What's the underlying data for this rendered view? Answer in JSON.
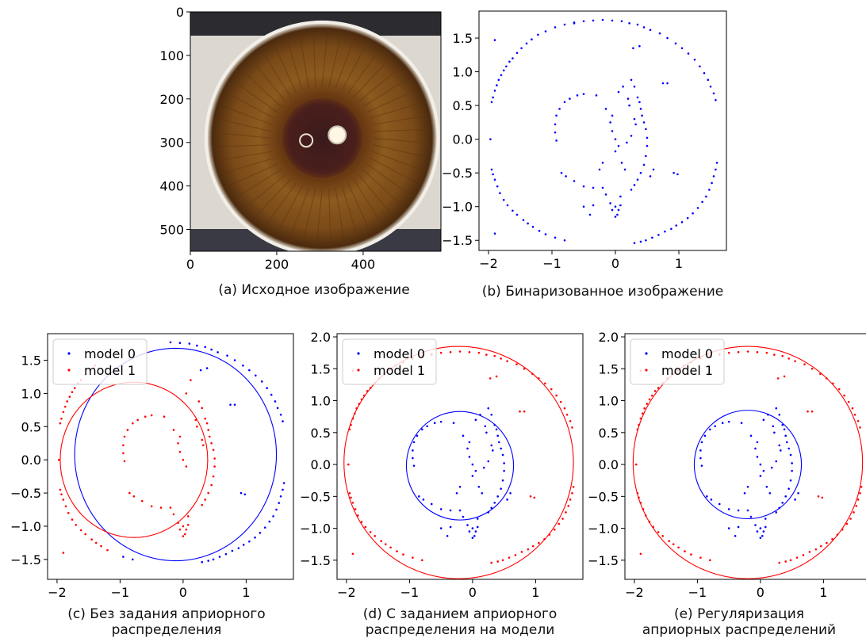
{
  "chart_data": [
    {
      "id": "a",
      "type": "image",
      "caption": "(a) Исходное изображение",
      "xticks": [
        "0",
        "200",
        "400"
      ],
      "yticks": [
        "0",
        "100",
        "200",
        "300",
        "400",
        "500"
      ],
      "xlim": [
        0,
        580
      ],
      "ylim": [
        550,
        0
      ],
      "image": {
        "width": 580,
        "height": 550,
        "iris_center": [
          305,
          290
        ],
        "iris_radius": 265,
        "pupil_radius": 92
      }
    },
    {
      "id": "b",
      "type": "scatter",
      "caption": "(b) Бинаризованное изображение",
      "xticks": [
        "−2",
        "−1",
        "0",
        "1"
      ],
      "yticks": [
        "−1.5",
        "−1.0",
        "−0.5",
        "0.0",
        "0.5",
        "1.0",
        "1.5"
      ],
      "xlim": [
        -2.15,
        1.75
      ],
      "ylim": [
        -1.65,
        1.9
      ],
      "series": [
        {
          "color": "#0000ff",
          "group": "all"
        }
      ]
    },
    {
      "id": "c",
      "type": "scatter",
      "caption": [
        "(c) Без задания априорного",
        "распределения"
      ],
      "legend": [
        "model 0",
        "model 1"
      ],
      "legend_position": "top-left",
      "xticks": [
        "−2",
        "−1",
        "0",
        "1"
      ],
      "yticks": [
        "−1.5",
        "−1.0",
        "−0.5",
        "0.0",
        "0.5",
        "1.0",
        "1.5"
      ],
      "xlim": [
        -2.15,
        1.75
      ],
      "ylim": [
        -1.8,
        1.9
      ],
      "series": [
        {
          "color": "#0000ff",
          "group": "c0"
        },
        {
          "color": "#ff0000",
          "group": "c1"
        }
      ],
      "circles": [
        {
          "cx": -0.12,
          "cy": 0.08,
          "r": 1.6,
          "color": "#0000ff"
        },
        {
          "cx": -0.78,
          "cy": 0.0,
          "r": 1.17,
          "color": "#ff0000"
        }
      ]
    },
    {
      "id": "d",
      "type": "scatter",
      "caption": [
        "(d) С заданием априорного",
        "распределения на модели"
      ],
      "legend": [
        "model 0",
        "model 1"
      ],
      "legend_position": "top-left",
      "xticks": [
        "−2",
        "−1",
        "0",
        "1"
      ],
      "yticks": [
        "−1.5",
        "−1.0",
        "−0.5",
        "0.0",
        "0.5",
        "1.0",
        "1.5",
        "2.0"
      ],
      "xlim": [
        -2.15,
        1.75
      ],
      "ylim": [
        -1.8,
        2.05
      ],
      "series": [
        {
          "color": "#0000ff",
          "group": "inner"
        },
        {
          "color": "#ff0000",
          "group": "outer"
        }
      ],
      "circles": [
        {
          "cx": -0.2,
          "cy": -0.02,
          "r": 0.85,
          "color": "#0000ff"
        },
        {
          "cx": -0.22,
          "cy": 0.03,
          "r": 1.82,
          "color": "#ff0000"
        }
      ]
    },
    {
      "id": "e",
      "type": "scatter",
      "caption": [
        "(e) Регуляризация",
        "априорных распределений"
      ],
      "legend": [
        "model 0",
        "model 1"
      ],
      "legend_position": "top-left",
      "xticks": [
        "−2",
        "−1",
        "0",
        "1"
      ],
      "yticks": [
        "−1.5",
        "−1.0",
        "−0.5",
        "0.0",
        "0.5",
        "1.0",
        "1.5",
        "2.0"
      ],
      "xlim": [
        -2.15,
        1.75
      ],
      "ylim": [
        -1.8,
        2.05
      ],
      "series": [
        {
          "color": "#0000ff",
          "group": "inner"
        },
        {
          "color": "#ff0000",
          "group": "outer"
        }
      ],
      "circles": [
        {
          "cx": -0.2,
          "cy": 0.0,
          "r": 0.85,
          "color": "#0000ff"
        },
        {
          "cx": -0.2,
          "cy": 0.03,
          "r": 1.82,
          "color": "#ff0000"
        }
      ]
    }
  ],
  "points": {
    "outer": [
      [
        -1.95,
        0.55
      ],
      [
        -1.93,
        0.62
      ],
      [
        -1.9,
        0.72
      ],
      [
        -1.87,
        0.8
      ],
      [
        -1.84,
        0.88
      ],
      [
        -1.8,
        0.95
      ],
      [
        -1.76,
        1.02
      ],
      [
        -1.72,
        1.08
      ],
      [
        -1.67,
        1.15
      ],
      [
        -1.62,
        1.2
      ],
      [
        -1.55,
        1.28
      ],
      [
        -1.48,
        1.35
      ],
      [
        -1.4,
        1.42
      ],
      [
        -1.32,
        1.48
      ],
      [
        -1.22,
        1.55
      ],
      [
        -1.1,
        1.6
      ],
      [
        -0.95,
        1.66
      ],
      [
        -0.8,
        1.7
      ],
      [
        -0.65,
        1.73
      ],
      [
        -0.5,
        1.75
      ],
      [
        -0.35,
        1.76
      ],
      [
        -0.2,
        1.77
      ],
      [
        -0.05,
        1.76
      ],
      [
        0.1,
        1.75
      ],
      [
        0.22,
        1.72
      ],
      [
        0.35,
        1.7
      ],
      [
        0.45,
        1.66
      ],
      [
        0.55,
        1.62
      ],
      [
        0.7,
        1.57
      ],
      [
        0.82,
        1.5
      ],
      [
        0.95,
        1.42
      ],
      [
        1.05,
        1.35
      ],
      [
        1.15,
        1.27
      ],
      [
        1.25,
        1.18
      ],
      [
        1.33,
        1.08
      ],
      [
        1.4,
        0.98
      ],
      [
        1.46,
        0.88
      ],
      [
        1.5,
        0.78
      ],
      [
        1.55,
        0.68
      ],
      [
        1.58,
        0.58
      ],
      [
        1.6,
        -0.35
      ],
      [
        1.58,
        -0.45
      ],
      [
        1.55,
        -0.55
      ],
      [
        1.52,
        -0.65
      ],
      [
        1.48,
        -0.75
      ],
      [
        1.43,
        -0.85
      ],
      [
        1.37,
        -0.93
      ],
      [
        1.3,
        -1.02
      ],
      [
        1.22,
        -1.1
      ],
      [
        1.14,
        -1.17
      ],
      [
        1.05,
        -1.23
      ],
      [
        0.96,
        -1.28
      ],
      [
        0.88,
        -1.33
      ],
      [
        0.78,
        -1.37
      ],
      [
        0.68,
        -1.42
      ],
      [
        0.58,
        -1.46
      ],
      [
        0.48,
        -1.5
      ],
      [
        0.4,
        -1.52
      ],
      [
        0.3,
        -1.54
      ],
      [
        -1.95,
        -0.45
      ],
      [
        -1.93,
        -0.52
      ],
      [
        -1.9,
        -0.6
      ],
      [
        -1.86,
        -0.7
      ],
      [
        -1.82,
        -0.8
      ],
      [
        -1.76,
        -0.9
      ],
      [
        -1.7,
        -0.98
      ],
      [
        -1.62,
        -1.06
      ],
      [
        -1.55,
        -1.12
      ],
      [
        -1.45,
        -1.2
      ],
      [
        -1.38,
        -1.25
      ],
      [
        -1.3,
        -1.3
      ],
      [
        -1.2,
        -1.36
      ],
      [
        -1.1,
        -1.41
      ],
      [
        -0.95,
        -1.46
      ],
      [
        -0.8,
        -1.5
      ],
      [
        -1.9,
        1.47
      ],
      [
        -1.9,
        -1.4
      ],
      [
        -0.65,
        1.72
      ],
      [
        0.28,
        1.35
      ],
      [
        0.38,
        1.38
      ],
      [
        0.75,
        0.83
      ],
      [
        0.82,
        0.83
      ],
      [
        0.92,
        -0.5
      ],
      [
        0.98,
        -0.52
      ],
      [
        -1.97,
        0.0
      ]
    ],
    "inner": [
      [
        -0.5,
        0.67
      ],
      [
        -0.6,
        0.65
      ],
      [
        -0.72,
        0.6
      ],
      [
        -0.8,
        0.55
      ],
      [
        -0.88,
        0.45
      ],
      [
        -0.93,
        0.35
      ],
      [
        -0.95,
        0.22
      ],
      [
        -0.95,
        0.1
      ],
      [
        -0.93,
        -0.02
      ],
      [
        -0.85,
        -0.5
      ],
      [
        -0.78,
        -0.55
      ],
      [
        -0.65,
        -0.62
      ],
      [
        -0.5,
        -0.7
      ],
      [
        -0.35,
        -0.72
      ],
      [
        -0.2,
        -0.72
      ],
      [
        -0.08,
        -0.95
      ],
      [
        0.0,
        -1.0
      ],
      [
        0.05,
        -1.05
      ],
      [
        0.08,
        -0.98
      ],
      [
        0.03,
        -1.12
      ],
      [
        -0.05,
        -1.05
      ],
      [
        0.0,
        -1.15
      ],
      [
        -0.15,
        -0.82
      ],
      [
        0.08,
        -0.85
      ],
      [
        -0.35,
        -0.98
      ],
      [
        -0.5,
        -1.0
      ],
      [
        -0.4,
        -1.12
      ],
      [
        0.25,
        0.88
      ],
      [
        0.3,
        0.78
      ],
      [
        0.35,
        0.62
      ],
      [
        0.38,
        0.55
      ],
      [
        0.4,
        0.45
      ],
      [
        0.42,
        0.35
      ],
      [
        0.45,
        0.25
      ],
      [
        0.48,
        0.15
      ],
      [
        0.5,
        0.02
      ],
      [
        0.5,
        -0.1
      ],
      [
        0.48,
        -0.25
      ],
      [
        0.45,
        -0.38
      ],
      [
        0.4,
        -0.5
      ],
      [
        0.35,
        -0.6
      ],
      [
        0.3,
        -0.68
      ],
      [
        0.25,
        -0.75
      ],
      [
        -0.05,
        0.35
      ],
      [
        -0.08,
        0.25
      ],
      [
        -0.05,
        0.12
      ],
      [
        0.0,
        0.0
      ],
      [
        0.05,
        -0.1
      ],
      [
        0.0,
        -0.18
      ],
      [
        0.2,
        0.6
      ],
      [
        0.22,
        0.5
      ],
      [
        0.3,
        0.3
      ],
      [
        0.32,
        0.22
      ],
      [
        0.25,
        0.05
      ],
      [
        0.18,
        -0.05
      ],
      [
        0.1,
        -0.35
      ],
      [
        0.15,
        -0.45
      ],
      [
        -0.2,
        -0.35
      ],
      [
        -0.25,
        -0.45
      ],
      [
        0.6,
        -0.45
      ],
      [
        0.55,
        -0.55
      ],
      [
        -0.15,
        0.45
      ],
      [
        -0.3,
        0.65
      ],
      [
        0.05,
        0.7
      ],
      [
        0.12,
        0.78
      ]
    ],
    "c0": [
      [
        -0.2,
        1.77
      ],
      [
        -0.05,
        1.76
      ],
      [
        0.1,
        1.75
      ],
      [
        0.22,
        1.72
      ],
      [
        0.35,
        1.7
      ],
      [
        0.45,
        1.66
      ],
      [
        0.55,
        1.62
      ],
      [
        0.7,
        1.57
      ],
      [
        0.82,
        1.5
      ],
      [
        0.95,
        1.42
      ],
      [
        1.05,
        1.35
      ],
      [
        1.15,
        1.27
      ],
      [
        1.25,
        1.18
      ],
      [
        1.33,
        1.08
      ],
      [
        1.4,
        0.98
      ],
      [
        1.46,
        0.88
      ],
      [
        1.5,
        0.78
      ],
      [
        1.55,
        0.68
      ],
      [
        1.58,
        0.58
      ],
      [
        1.6,
        -0.35
      ],
      [
        1.58,
        -0.45
      ],
      [
        1.55,
        -0.55
      ],
      [
        1.52,
        -0.65
      ],
      [
        1.48,
        -0.75
      ],
      [
        1.43,
        -0.85
      ],
      [
        1.37,
        -0.93
      ],
      [
        1.3,
        -1.02
      ],
      [
        1.22,
        -1.1
      ],
      [
        1.14,
        -1.17
      ],
      [
        1.05,
        -1.23
      ],
      [
        0.96,
        -1.28
      ],
      [
        0.88,
        -1.33
      ],
      [
        0.78,
        -1.37
      ],
      [
        0.68,
        -1.42
      ],
      [
        0.58,
        -1.46
      ],
      [
        0.48,
        -1.5
      ],
      [
        0.4,
        -1.52
      ],
      [
        0.3,
        -1.54
      ],
      [
        0.75,
        0.83
      ],
      [
        0.82,
        0.83
      ],
      [
        0.92,
        -0.5
      ],
      [
        0.98,
        -0.52
      ],
      [
        0.28,
        1.35
      ],
      [
        0.38,
        1.38
      ],
      [
        -0.95,
        -1.46
      ],
      [
        -0.8,
        -1.5
      ]
    ],
    "c1": [
      [
        -1.95,
        0.55
      ],
      [
        -1.93,
        0.62
      ],
      [
        -1.9,
        0.72
      ],
      [
        -1.87,
        0.8
      ],
      [
        -1.84,
        0.88
      ],
      [
        -1.8,
        0.95
      ],
      [
        -1.76,
        1.02
      ],
      [
        -1.72,
        1.08
      ],
      [
        -1.67,
        1.15
      ],
      [
        -1.62,
        1.2
      ],
      [
        -1.55,
        1.28
      ],
      [
        -1.48,
        1.35
      ],
      [
        -1.4,
        1.42
      ],
      [
        -1.95,
        -0.45
      ],
      [
        -1.93,
        -0.52
      ],
      [
        -1.9,
        -0.6
      ],
      [
        -1.86,
        -0.7
      ],
      [
        -1.82,
        -0.8
      ],
      [
        -1.76,
        -0.9
      ],
      [
        -1.7,
        -0.98
      ],
      [
        -1.62,
        -1.06
      ],
      [
        -1.55,
        -1.12
      ],
      [
        -1.45,
        -1.2
      ],
      [
        -1.38,
        -1.25
      ],
      [
        -1.3,
        -1.3
      ],
      [
        -1.2,
        -1.36
      ],
      [
        -1.9,
        -1.4
      ],
      [
        -1.97,
        0.0
      ],
      [
        -0.5,
        0.67
      ],
      [
        -0.6,
        0.65
      ],
      [
        -0.72,
        0.6
      ],
      [
        -0.8,
        0.55
      ],
      [
        -0.88,
        0.45
      ],
      [
        -0.93,
        0.35
      ],
      [
        -0.95,
        0.22
      ],
      [
        -0.95,
        0.1
      ],
      [
        -0.93,
        -0.02
      ],
      [
        -0.85,
        -0.5
      ],
      [
        -0.78,
        -0.55
      ],
      [
        -0.65,
        -0.62
      ],
      [
        -0.5,
        -0.7
      ],
      [
        -0.35,
        -0.72
      ],
      [
        -0.2,
        -0.72
      ],
      [
        -0.08,
        -0.95
      ],
      [
        0.0,
        -1.0
      ],
      [
        0.05,
        -1.05
      ],
      [
        0.08,
        -0.98
      ],
      [
        0.03,
        -1.12
      ],
      [
        -0.05,
        -1.05
      ],
      [
        0.0,
        -1.15
      ],
      [
        -0.15,
        -0.82
      ],
      [
        0.08,
        -0.85
      ],
      [
        0.25,
        0.88
      ],
      [
        0.3,
        0.78
      ],
      [
        0.35,
        0.62
      ],
      [
        0.38,
        0.55
      ],
      [
        0.4,
        0.45
      ],
      [
        0.42,
        0.35
      ],
      [
        0.45,
        0.25
      ],
      [
        0.48,
        0.15
      ],
      [
        0.5,
        0.02
      ],
      [
        0.5,
        -0.1
      ],
      [
        0.48,
        -0.25
      ],
      [
        0.45,
        -0.38
      ],
      [
        0.4,
        -0.5
      ],
      [
        0.35,
        -0.6
      ],
      [
        0.3,
        -0.68
      ],
      [
        -0.05,
        0.35
      ],
      [
        -0.08,
        0.25
      ],
      [
        -0.05,
        0.12
      ],
      [
        0.0,
        0.0
      ],
      [
        0.05,
        -0.1
      ],
      [
        0.2,
        0.6
      ],
      [
        0.22,
        0.5
      ],
      [
        0.3,
        0.3
      ],
      [
        0.32,
        0.22
      ],
      [
        -0.15,
        0.45
      ],
      [
        -0.3,
        0.65
      ],
      [
        0.12,
        1.2
      ],
      [
        0.05,
        1.0
      ]
    ]
  }
}
